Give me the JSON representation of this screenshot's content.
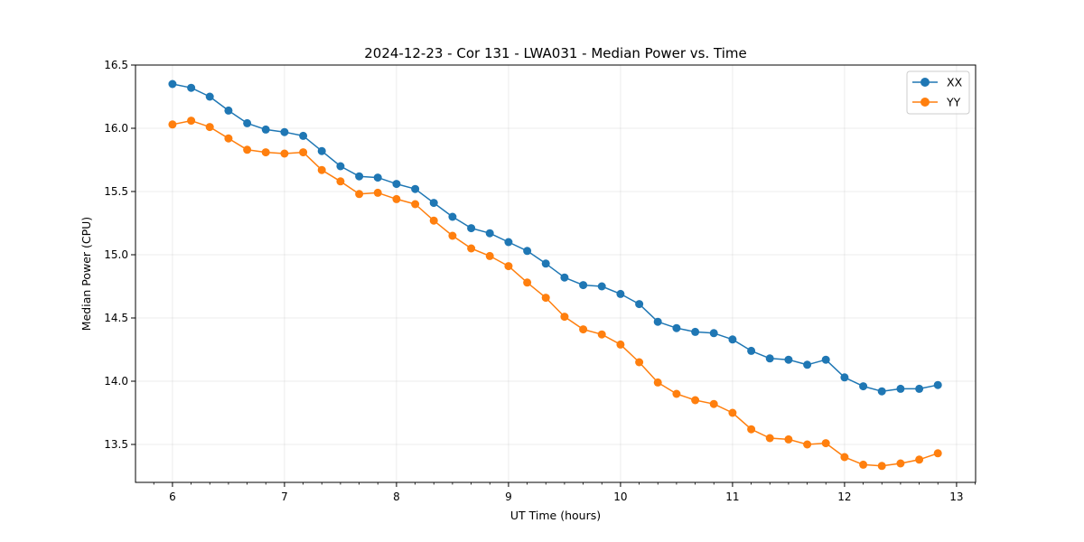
{
  "chart_data": {
    "type": "line",
    "title": "2024-12-23 - Cor 131 - LWA031 - Median Power vs. Time",
    "xlabel": "UT Time (hours)",
    "ylabel": "Median Power (CPU)",
    "xlim": [
      5.67,
      13.17
    ],
    "ylim": [
      13.2,
      16.5
    ],
    "xticks": [
      6,
      7,
      8,
      9,
      10,
      11,
      12,
      13
    ],
    "yticks": [
      13.5,
      14.0,
      14.5,
      15.0,
      15.5,
      16.0,
      16.5
    ],
    "ytick_labels": [
      "13.5",
      "14.0",
      "14.5",
      "15.0",
      "15.5",
      "16.0",
      "16.5"
    ],
    "grid": true,
    "legend_position": "top-right",
    "x": [
      6.0,
      6.167,
      6.333,
      6.5,
      6.667,
      6.833,
      7.0,
      7.167,
      7.333,
      7.5,
      7.667,
      7.833,
      8.0,
      8.167,
      8.333,
      8.5,
      8.667,
      8.833,
      9.0,
      9.167,
      9.333,
      9.5,
      9.667,
      9.833,
      10.0,
      10.167,
      10.333,
      10.5,
      10.667,
      10.833,
      11.0,
      11.167,
      11.333,
      11.5,
      11.667,
      11.833,
      12.0,
      12.167,
      12.333,
      12.5,
      12.667,
      12.833
    ],
    "series": [
      {
        "name": "XX",
        "color": "#1f77b4",
        "values": [
          16.35,
          16.32,
          16.25,
          16.14,
          16.04,
          15.99,
          15.97,
          15.94,
          15.82,
          15.7,
          15.62,
          15.61,
          15.56,
          15.52,
          15.41,
          15.3,
          15.21,
          15.17,
          15.1,
          15.03,
          14.93,
          14.82,
          14.76,
          14.75,
          14.69,
          14.61,
          14.47,
          14.42,
          14.39,
          14.38,
          14.33,
          14.24,
          14.18,
          14.17,
          14.13,
          14.17,
          14.03,
          13.96,
          13.92,
          13.94,
          13.94,
          13.97
        ]
      },
      {
        "name": "YY",
        "color": "#ff7f0e",
        "values": [
          16.03,
          16.06,
          16.01,
          15.92,
          15.83,
          15.81,
          15.8,
          15.81,
          15.67,
          15.58,
          15.48,
          15.49,
          15.44,
          15.4,
          15.27,
          15.15,
          15.05,
          14.99,
          14.91,
          14.78,
          14.66,
          14.51,
          14.41,
          14.37,
          14.29,
          14.15,
          13.99,
          13.9,
          13.85,
          13.82,
          13.75,
          13.62,
          13.55,
          13.54,
          13.5,
          13.51,
          13.4,
          13.34,
          13.33,
          13.35,
          13.38,
          13.43
        ]
      }
    ]
  }
}
